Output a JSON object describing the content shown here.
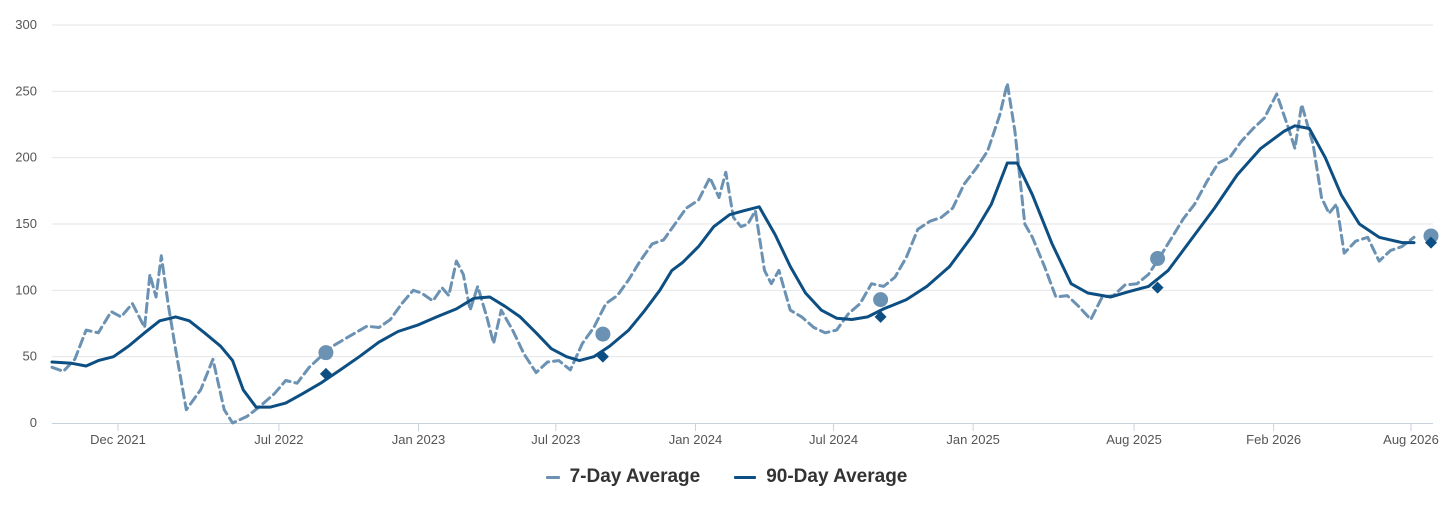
{
  "chart_data": {
    "type": "line",
    "x_axis": {
      "type": "date",
      "range": [
        "2021-09-05",
        "2026-08-30"
      ],
      "ticks": [
        {
          "date": "2021-12-01",
          "label": "Dec 2021"
        },
        {
          "date": "2022-07-01",
          "label": "Jul 2022"
        },
        {
          "date": "2023-01-01",
          "label": "Jan 2023"
        },
        {
          "date": "2023-07-01",
          "label": "Jul 2023"
        },
        {
          "date": "2024-01-01",
          "label": "Jan 2024"
        },
        {
          "date": "2024-07-01",
          "label": "Jul 2024"
        },
        {
          "date": "2025-01-01",
          "label": "Jan 2025"
        },
        {
          "date": "2025-08-01",
          "label": "Aug 2025"
        },
        {
          "date": "2026-02-01",
          "label": "Feb 2026"
        },
        {
          "date": "2026-08-01",
          "label": "Aug 2026"
        }
      ]
    },
    "y_axis": {
      "range": [
        0,
        300
      ],
      "ticks": [
        0,
        50,
        100,
        150,
        200,
        250,
        300
      ]
    },
    "grid": "horizontal",
    "legend_position": "bottom-center",
    "series": [
      {
        "name": "7-Day Average",
        "style": "dashed",
        "color": "#6b92b3",
        "points": [
          [
            "2021-09-05",
            42
          ],
          [
            "2021-09-20",
            39
          ],
          [
            "2021-10-05",
            48
          ],
          [
            "2021-10-20",
            70
          ],
          [
            "2021-11-05",
            68
          ],
          [
            "2021-11-22",
            84
          ],
          [
            "2021-12-05",
            80
          ],
          [
            "2021-12-20",
            90
          ],
          [
            "2022-01-05",
            72
          ],
          [
            "2022-01-12",
            112
          ],
          [
            "2022-01-20",
            95
          ],
          [
            "2022-01-27",
            126
          ],
          [
            "2022-02-05",
            90
          ],
          [
            "2022-02-15",
            55
          ],
          [
            "2022-03-01",
            10
          ],
          [
            "2022-03-20",
            25
          ],
          [
            "2022-04-05",
            48
          ],
          [
            "2022-04-20",
            10
          ],
          [
            "2022-05-01",
            0
          ],
          [
            "2022-05-20",
            5
          ],
          [
            "2022-06-05",
            12
          ],
          [
            "2022-06-25",
            22
          ],
          [
            "2022-07-10",
            32
          ],
          [
            "2022-07-25",
            30
          ],
          [
            "2022-08-10",
            42
          ],
          [
            "2022-08-25",
            50
          ],
          [
            "2022-09-10",
            58
          ],
          [
            "2022-09-25",
            63
          ],
          [
            "2022-10-10",
            68
          ],
          [
            "2022-10-25",
            73
          ],
          [
            "2022-11-10",
            72
          ],
          [
            "2022-11-25",
            78
          ],
          [
            "2022-12-10",
            90
          ],
          [
            "2022-12-25",
            100
          ],
          [
            "2023-01-05",
            98
          ],
          [
            "2023-01-20",
            92
          ],
          [
            "2023-02-01",
            102
          ],
          [
            "2023-02-10",
            96
          ],
          [
            "2023-02-20",
            122
          ],
          [
            "2023-03-01",
            112
          ],
          [
            "2023-03-10",
            85
          ],
          [
            "2023-03-20",
            103
          ],
          [
            "2023-04-01",
            80
          ],
          [
            "2023-04-10",
            60
          ],
          [
            "2023-04-20",
            85
          ],
          [
            "2023-05-05",
            70
          ],
          [
            "2023-05-20",
            52
          ],
          [
            "2023-06-05",
            38
          ],
          [
            "2023-06-20",
            46
          ],
          [
            "2023-07-05",
            47
          ],
          [
            "2023-07-20",
            40
          ],
          [
            "2023-08-05",
            60
          ],
          [
            "2023-08-20",
            72
          ],
          [
            "2023-09-05",
            90
          ],
          [
            "2023-09-20",
            96
          ],
          [
            "2023-10-05",
            108
          ],
          [
            "2023-10-20",
            122
          ],
          [
            "2023-11-05",
            135
          ],
          [
            "2023-11-20",
            138
          ],
          [
            "2023-12-05",
            150
          ],
          [
            "2023-12-20",
            162
          ],
          [
            "2024-01-05",
            168
          ],
          [
            "2024-01-20",
            185
          ],
          [
            "2024-02-01",
            170
          ],
          [
            "2024-02-10",
            189
          ],
          [
            "2024-02-20",
            155
          ],
          [
            "2024-03-01",
            148
          ],
          [
            "2024-03-10",
            150
          ],
          [
            "2024-03-20",
            160
          ],
          [
            "2024-04-01",
            115
          ],
          [
            "2024-04-10",
            105
          ],
          [
            "2024-04-20",
            115
          ],
          [
            "2024-05-05",
            85
          ],
          [
            "2024-05-20",
            80
          ],
          [
            "2024-06-05",
            72
          ],
          [
            "2024-06-20",
            68
          ],
          [
            "2024-07-05",
            70
          ],
          [
            "2024-07-20",
            82
          ],
          [
            "2024-08-05",
            90
          ],
          [
            "2024-08-20",
            105
          ],
          [
            "2024-09-05",
            103
          ],
          [
            "2024-09-20",
            110
          ],
          [
            "2024-10-05",
            125
          ],
          [
            "2024-10-20",
            146
          ],
          [
            "2024-11-05",
            152
          ],
          [
            "2024-11-20",
            155
          ],
          [
            "2024-12-05",
            162
          ],
          [
            "2024-12-20",
            180
          ],
          [
            "2025-01-05",
            192
          ],
          [
            "2025-01-20",
            205
          ],
          [
            "2025-02-05",
            232
          ],
          [
            "2025-02-15",
            256
          ],
          [
            "2025-02-25",
            220
          ],
          [
            "2025-03-10",
            150
          ],
          [
            "2025-03-20",
            140
          ],
          [
            "2025-04-05",
            118
          ],
          [
            "2025-04-20",
            95
          ],
          [
            "2025-05-05",
            96
          ],
          [
            "2025-05-20",
            88
          ],
          [
            "2025-06-05",
            78
          ],
          [
            "2025-06-20",
            95
          ],
          [
            "2025-07-05",
            96
          ],
          [
            "2025-07-20",
            104
          ],
          [
            "2025-08-05",
            105
          ],
          [
            "2025-08-20",
            112
          ],
          [
            "2025-09-05",
            126
          ],
          [
            "2025-09-20",
            140
          ],
          [
            "2025-10-05",
            154
          ],
          [
            "2025-10-20",
            165
          ],
          [
            "2025-11-05",
            182
          ],
          [
            "2025-11-20",
            196
          ],
          [
            "2025-12-05",
            200
          ],
          [
            "2025-12-20",
            212
          ],
          [
            "2026-01-05",
            222
          ],
          [
            "2026-01-20",
            230
          ],
          [
            "2026-02-05",
            248
          ],
          [
            "2026-02-20",
            223
          ],
          [
            "2026-03-01",
            207
          ],
          [
            "2026-03-10",
            240
          ],
          [
            "2026-03-25",
            210
          ],
          [
            "2026-04-05",
            170
          ],
          [
            "2026-04-15",
            158
          ],
          [
            "2026-04-25",
            165
          ],
          [
            "2026-05-05",
            128
          ],
          [
            "2026-05-20",
            137
          ],
          [
            "2026-06-05",
            140
          ],
          [
            "2026-06-20",
            122
          ],
          [
            "2026-07-05",
            130
          ],
          [
            "2026-07-20",
            133
          ],
          [
            "2026-08-05",
            140
          ]
        ],
        "markers": {
          "shape": "circle",
          "points": [
            [
              "2022-09-01",
              53
            ],
            [
              "2023-09-01",
              67
            ],
            [
              "2024-09-01",
              93
            ],
            [
              "2025-09-01",
              124
            ],
            [
              "2026-09-01",
              141
            ]
          ]
        }
      },
      {
        "name": "90-Day Average",
        "style": "solid",
        "color": "#0d4f82",
        "points": [
          [
            "2021-09-05",
            46
          ],
          [
            "2021-10-01",
            45
          ],
          [
            "2021-10-20",
            43
          ],
          [
            "2021-11-05",
            47
          ],
          [
            "2021-11-25",
            50
          ],
          [
            "2021-12-15",
            58
          ],
          [
            "2022-01-05",
            68
          ],
          [
            "2022-01-25",
            77
          ],
          [
            "2022-02-15",
            80
          ],
          [
            "2022-03-05",
            77
          ],
          [
            "2022-03-25",
            68
          ],
          [
            "2022-04-15",
            58
          ],
          [
            "2022-05-01",
            47
          ],
          [
            "2022-05-15",
            25
          ],
          [
            "2022-06-01",
            12
          ],
          [
            "2022-06-20",
            12
          ],
          [
            "2022-07-10",
            15
          ],
          [
            "2022-08-01",
            22
          ],
          [
            "2022-08-25",
            30
          ],
          [
            "2022-09-20",
            40
          ],
          [
            "2022-10-15",
            50
          ],
          [
            "2022-11-10",
            61
          ],
          [
            "2022-12-05",
            69
          ],
          [
            "2023-01-01",
            74
          ],
          [
            "2023-01-25",
            80
          ],
          [
            "2023-02-20",
            86
          ],
          [
            "2023-03-15",
            94
          ],
          [
            "2023-04-05",
            95
          ],
          [
            "2023-04-25",
            88
          ],
          [
            "2023-05-15",
            80
          ],
          [
            "2023-06-05",
            68
          ],
          [
            "2023-06-25",
            56
          ],
          [
            "2023-07-15",
            50
          ],
          [
            "2023-08-01",
            47
          ],
          [
            "2023-08-20",
            50
          ],
          [
            "2023-09-10",
            58
          ],
          [
            "2023-10-05",
            70
          ],
          [
            "2023-10-25",
            84
          ],
          [
            "2023-11-15",
            100
          ],
          [
            "2023-12-01",
            115
          ],
          [
            "2023-12-15",
            121
          ],
          [
            "2024-01-05",
            133
          ],
          [
            "2024-01-25",
            148
          ],
          [
            "2024-02-15",
            157
          ],
          [
            "2024-03-05",
            160
          ],
          [
            "2024-03-25",
            163
          ],
          [
            "2024-04-15",
            142
          ],
          [
            "2024-05-05",
            118
          ],
          [
            "2024-05-25",
            98
          ],
          [
            "2024-06-15",
            85
          ],
          [
            "2024-07-05",
            79
          ],
          [
            "2024-07-25",
            78
          ],
          [
            "2024-08-15",
            80
          ],
          [
            "2024-09-05",
            86
          ],
          [
            "2024-10-05",
            93
          ],
          [
            "2024-11-01",
            103
          ],
          [
            "2024-12-01",
            118
          ],
          [
            "2025-01-01",
            142
          ],
          [
            "2025-01-25",
            165
          ],
          [
            "2025-02-15",
            196
          ],
          [
            "2025-02-28",
            196
          ],
          [
            "2025-03-20",
            172
          ],
          [
            "2025-04-15",
            135
          ],
          [
            "2025-05-10",
            105
          ],
          [
            "2025-06-01",
            98
          ],
          [
            "2025-07-01",
            95
          ],
          [
            "2025-07-25",
            99
          ],
          [
            "2025-08-20",
            103
          ],
          [
            "2025-09-15",
            115
          ],
          [
            "2025-10-15",
            138
          ],
          [
            "2025-11-15",
            162
          ],
          [
            "2025-12-15",
            187
          ],
          [
            "2026-01-15",
            207
          ],
          [
            "2026-02-15",
            220
          ],
          [
            "2026-03-01",
            224
          ],
          [
            "2026-03-20",
            222
          ],
          [
            "2026-04-10",
            200
          ],
          [
            "2026-05-01",
            172
          ],
          [
            "2026-05-25",
            150
          ],
          [
            "2026-06-20",
            140
          ],
          [
            "2026-07-20",
            136
          ],
          [
            "2026-08-05",
            136
          ]
        ],
        "markers": {
          "shape": "diamond",
          "points": [
            [
              "2022-09-01",
              37
            ],
            [
              "2023-09-01",
              50
            ],
            [
              "2024-09-01",
              80
            ],
            [
              "2025-09-01",
              102
            ],
            [
              "2026-09-01",
              136
            ]
          ]
        }
      }
    ]
  }
}
